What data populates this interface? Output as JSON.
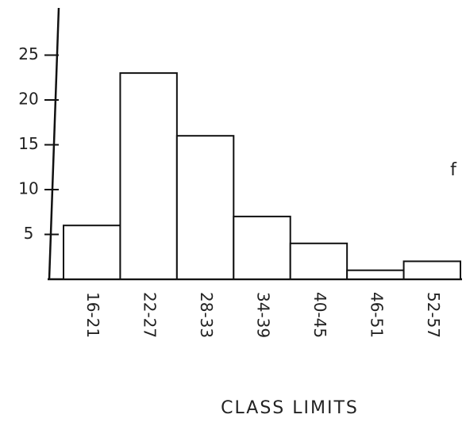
{
  "chart_data": {
    "type": "bar",
    "x_label": "CLASS LIMITS",
    "y_label": "f",
    "categories": [
      "16-21",
      "22-27",
      "28-33",
      "34-39",
      "40-45",
      "46-51",
      "52-57"
    ],
    "values": [
      6,
      23,
      16,
      7,
      4,
      1,
      2
    ],
    "color": "#ffffff",
    "ylim": [
      0,
      30
    ],
    "yticks": [
      5,
      10,
      15,
      20,
      25
    ]
  }
}
